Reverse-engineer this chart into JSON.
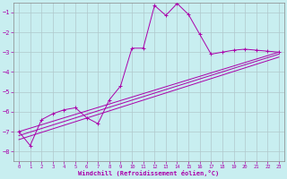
{
  "xlabel": "Windchill (Refroidissement éolien,°C)",
  "background_color": "#c8eef0",
  "grid_color": "#b0c8cc",
  "line_color": "#aa00aa",
  "x_ticks": [
    0,
    1,
    2,
    3,
    4,
    5,
    6,
    7,
    8,
    9,
    10,
    11,
    12,
    13,
    14,
    15,
    16,
    17,
    18,
    19,
    20,
    21,
    22,
    23
  ],
  "y_ticks": [
    -8,
    -7,
    -6,
    -5,
    -4,
    -3,
    -2,
    -1
  ],
  "ylim": [
    -8.5,
    -0.5
  ],
  "xlim": [
    -0.5,
    23.5
  ],
  "series1_x": [
    0,
    1,
    2,
    3,
    4,
    5,
    6,
    7,
    8,
    9,
    10,
    11,
    12,
    13,
    14,
    15,
    16,
    17,
    18,
    19,
    20,
    21,
    22,
    23
  ],
  "series1_y": [
    -7.0,
    -7.7,
    -6.4,
    -6.1,
    -5.9,
    -5.8,
    -6.3,
    -6.6,
    -5.4,
    -4.7,
    -2.8,
    -2.8,
    -0.65,
    -1.15,
    -0.55,
    -1.1,
    -2.1,
    -3.1,
    -3.0,
    -2.9,
    -2.85,
    -2.9,
    -2.95,
    -3.0
  ],
  "line1_x": [
    0,
    23
  ],
  "line1_y": [
    -7.0,
    -3.0
  ],
  "line2_x": [
    0,
    23
  ],
  "line2_y": [
    -7.2,
    -3.1
  ],
  "line3_x": [
    0,
    23
  ],
  "line3_y": [
    -7.4,
    -3.25
  ]
}
